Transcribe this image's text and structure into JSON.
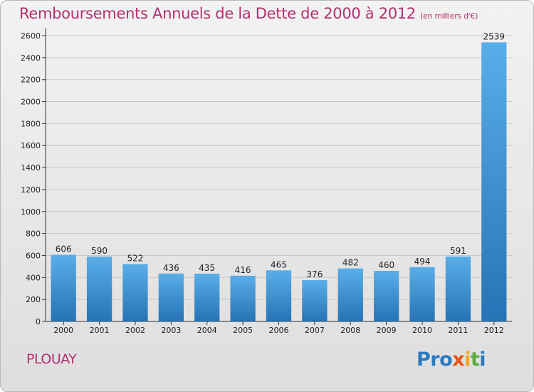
{
  "title": "Remboursements Annuels de la Dette de 2000 à 2012",
  "unit": "(en milliers d'€)",
  "commune": "PLOUAY",
  "logo": {
    "letters": [
      "P",
      "r",
      "o",
      "x",
      "i",
      "t",
      "i"
    ],
    "colors": [
      "#2a7abf",
      "#2a7abf",
      "#2a7abf",
      "#e8541a",
      "#f2a71b",
      "#5cab3a",
      "#2a7abf"
    ]
  },
  "colors": {
    "title": "#b42f70",
    "bar_light": "#5aaee8",
    "bar_dark": "#2673b5",
    "grid": "#c8c8c8"
  },
  "chart_data": {
    "type": "bar",
    "title": "Remboursements Annuels de la Dette de 2000 à 2012",
    "subtitle": "(en milliers d'€)",
    "categories": [
      "2000",
      "2001",
      "2002",
      "2003",
      "2004",
      "2005",
      "2006",
      "2007",
      "2008",
      "2009",
      "2010",
      "2011",
      "2012"
    ],
    "values": [
      606,
      590,
      522,
      436,
      435,
      416,
      465,
      376,
      482,
      460,
      494,
      591,
      2539
    ],
    "ylim": [
      0,
      2600
    ],
    "yticks": [
      0,
      200,
      400,
      600,
      800,
      1000,
      1200,
      1400,
      1600,
      1800,
      2000,
      2200,
      2400,
      2600
    ],
    "grid": true,
    "data_labels": true
  }
}
